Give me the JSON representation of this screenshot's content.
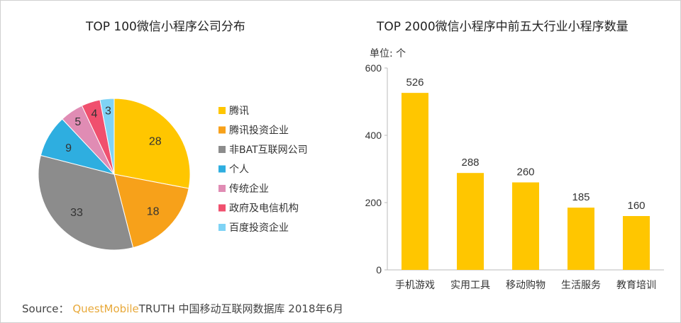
{
  "chart_data": [
    {
      "type": "pie",
      "title": "TOP 100微信小程序公司分布",
      "categories": [
        "腾讯",
        "腾讯投资企业",
        "非BAT互联网公司",
        "个人",
        "传统企业",
        "政府及电信机构",
        "百度投资企业"
      ],
      "values": [
        28,
        18,
        33,
        9,
        5,
        4,
        3
      ],
      "colors": [
        "#ffc600",
        "#f7a11a",
        "#8c8c8c",
        "#2eaee0",
        "#e08cb4",
        "#f0506e",
        "#7fd3f5"
      ],
      "legend": "right",
      "start": "top",
      "direction": "clockwise"
    },
    {
      "type": "bar",
      "title": "TOP 2000微信小程序中前五大行业小程序数量",
      "unit_label": "单位: 个",
      "categories": [
        "手机游戏",
        "实用工具",
        "移动购物",
        "生活服务",
        "教育培训"
      ],
      "values": [
        526,
        288,
        260,
        185,
        160
      ],
      "ylim": [
        0,
        600
      ],
      "yticks": [
        0,
        200,
        400,
        600
      ],
      "color": "#ffc600",
      "grid": false
    }
  ],
  "source": {
    "prefix": "Source：",
    "brand": "QuestMobile",
    "text": "TRUTH 中国移动互联网数据库 2018年6月"
  }
}
